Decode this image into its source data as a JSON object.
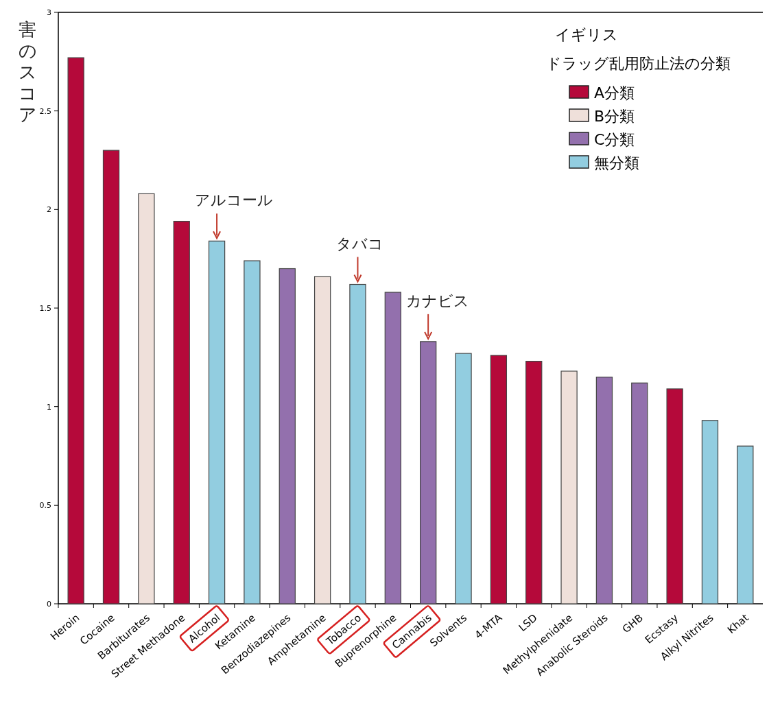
{
  "chart_data": {
    "type": "bar",
    "title": "イギリス",
    "ylabel": "害のスコア",
    "legend_title": "ドラッグ乱用防止法の分類",
    "legend": "top right",
    "ylim": [
      0,
      3
    ],
    "yticks": [
      0,
      0.5,
      1,
      1.5,
      2,
      2.5,
      3
    ],
    "categories": [
      "Heroin",
      "Cocaine",
      "Barbiturates",
      "Street Methadone",
      "Alcohol",
      "Ketamine",
      "Benzodiazepines",
      "Amphetamine",
      "Tobacco",
      "Buprenorphine",
      "Cannabis",
      "Solvents",
      "4-MTA",
      "LSD",
      "Methylphenidate",
      "Anabolic Steroids",
      "GHB",
      "Ecstasy",
      "Alkyl Nitrites",
      "Khat"
    ],
    "series": [
      {
        "name": "A分類",
        "color": "#b5093a",
        "values": [
          2.77,
          2.3,
          null,
          1.94,
          null,
          null,
          null,
          null,
          null,
          null,
          null,
          null,
          1.26,
          1.23,
          null,
          null,
          null,
          1.09,
          null,
          null
        ]
      },
      {
        "name": "B分類",
        "color": "#efe0da",
        "values": [
          null,
          null,
          2.08,
          null,
          null,
          null,
          null,
          1.66,
          null,
          null,
          null,
          null,
          null,
          null,
          1.18,
          null,
          null,
          null,
          null,
          null
        ]
      },
      {
        "name": "C分類",
        "color": "#9370ad",
        "values": [
          null,
          null,
          null,
          null,
          null,
          null,
          1.7,
          null,
          null,
          1.58,
          1.33,
          null,
          null,
          null,
          null,
          1.15,
          1.12,
          null,
          null,
          null
        ]
      },
      {
        "name": "無分類",
        "color": "#92cde0",
        "values": [
          null,
          null,
          null,
          null,
          1.84,
          1.74,
          null,
          null,
          1.62,
          null,
          null,
          1.27,
          null,
          null,
          null,
          null,
          null,
          null,
          0.93,
          0.8
        ]
      }
    ],
    "annotations": [
      {
        "text": "アルコール",
        "x": "Alcohol",
        "y": 1.84
      },
      {
        "text": "タバコ",
        "x": "Tobacco",
        "y": 1.62
      },
      {
        "text": "カナビス",
        "x": "Cannabis",
        "y": 1.33
      }
    ]
  }
}
